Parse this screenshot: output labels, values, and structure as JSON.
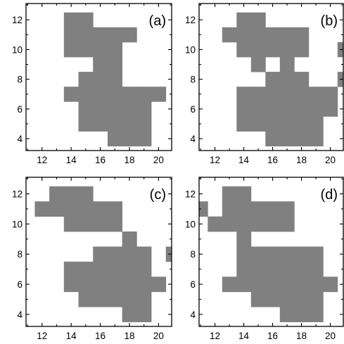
{
  "figure": {
    "colors": {
      "cell": "#808080",
      "frame": "#000000",
      "background": "#ffffff"
    }
  },
  "chart_data": [
    {
      "type": "heatmap",
      "panel_label": "(a)",
      "xlim": [
        10.9,
        20.9
      ],
      "ylim": [
        3.2,
        13.1
      ],
      "x_ticks": [
        12,
        14,
        16,
        18,
        20
      ],
      "y_ticks": [
        4,
        6,
        8,
        10,
        12
      ],
      "grid": false,
      "cells": [
        [
          14,
          12
        ],
        [
          15,
          12
        ],
        [
          14,
          11
        ],
        [
          15,
          11
        ],
        [
          16,
          11
        ],
        [
          17,
          11
        ],
        [
          18,
          11
        ],
        [
          14,
          10
        ],
        [
          15,
          10
        ],
        [
          16,
          10
        ],
        [
          17,
          10
        ],
        [
          16,
          9
        ],
        [
          17,
          9
        ],
        [
          15,
          8
        ],
        [
          16,
          8
        ],
        [
          17,
          8
        ],
        [
          14,
          7
        ],
        [
          15,
          7
        ],
        [
          16,
          7
        ],
        [
          17,
          7
        ],
        [
          18,
          7
        ],
        [
          19,
          7
        ],
        [
          20,
          7
        ],
        [
          15,
          6
        ],
        [
          16,
          6
        ],
        [
          17,
          6
        ],
        [
          18,
          6
        ],
        [
          19,
          6
        ],
        [
          15,
          5
        ],
        [
          16,
          5
        ],
        [
          17,
          5
        ],
        [
          18,
          5
        ],
        [
          19,
          5
        ],
        [
          17,
          4
        ],
        [
          18,
          4
        ],
        [
          19,
          4
        ]
      ]
    },
    {
      "type": "heatmap",
      "panel_label": "(b)",
      "xlim": [
        10.9,
        20.9
      ],
      "ylim": [
        3.2,
        13.1
      ],
      "x_ticks": [
        12,
        14,
        16,
        18,
        20
      ],
      "y_ticks": [
        4,
        6,
        8,
        10,
        12
      ],
      "grid": false,
      "cells": [
        [
          14,
          12
        ],
        [
          15,
          12
        ],
        [
          13,
          11
        ],
        [
          14,
          11
        ],
        [
          15,
          11
        ],
        [
          16,
          11
        ],
        [
          17,
          11
        ],
        [
          18,
          11
        ],
        [
          14,
          10
        ],
        [
          15,
          10
        ],
        [
          16,
          10
        ],
        [
          17,
          10
        ],
        [
          18,
          10
        ],
        [
          21,
          10
        ],
        [
          15,
          9
        ],
        [
          17,
          9
        ],
        [
          16,
          8
        ],
        [
          17,
          8
        ],
        [
          18,
          8
        ],
        [
          21,
          8
        ],
        [
          14,
          7
        ],
        [
          15,
          7
        ],
        [
          16,
          7
        ],
        [
          17,
          7
        ],
        [
          18,
          7
        ],
        [
          19,
          7
        ],
        [
          20,
          7
        ],
        [
          14,
          6
        ],
        [
          15,
          6
        ],
        [
          16,
          6
        ],
        [
          17,
          6
        ],
        [
          18,
          6
        ],
        [
          19,
          6
        ],
        [
          20,
          6
        ],
        [
          14,
          5
        ],
        [
          15,
          5
        ],
        [
          16,
          5
        ],
        [
          17,
          5
        ],
        [
          18,
          5
        ],
        [
          19,
          5
        ],
        [
          16,
          4
        ],
        [
          17,
          4
        ],
        [
          18,
          4
        ],
        [
          19,
          4
        ]
      ]
    },
    {
      "type": "heatmap",
      "panel_label": "(c)",
      "xlim": [
        10.9,
        20.9
      ],
      "ylim": [
        3.2,
        13.1
      ],
      "x_ticks": [
        12,
        14,
        16,
        18,
        20
      ],
      "y_ticks": [
        4,
        6,
        8,
        10,
        12
      ],
      "grid": false,
      "cells": [
        [
          13,
          12
        ],
        [
          14,
          12
        ],
        [
          15,
          12
        ],
        [
          12,
          11
        ],
        [
          13,
          11
        ],
        [
          14,
          11
        ],
        [
          15,
          11
        ],
        [
          16,
          11
        ],
        [
          17,
          11
        ],
        [
          14,
          10
        ],
        [
          15,
          10
        ],
        [
          16,
          10
        ],
        [
          17,
          10
        ],
        [
          18,
          9
        ],
        [
          16,
          8
        ],
        [
          17,
          8
        ],
        [
          18,
          8
        ],
        [
          19,
          8
        ],
        [
          21,
          8
        ],
        [
          14,
          7
        ],
        [
          15,
          7
        ],
        [
          16,
          7
        ],
        [
          17,
          7
        ],
        [
          18,
          7
        ],
        [
          19,
          7
        ],
        [
          14,
          6
        ],
        [
          15,
          6
        ],
        [
          16,
          6
        ],
        [
          17,
          6
        ],
        [
          18,
          6
        ],
        [
          19,
          6
        ],
        [
          20,
          6
        ],
        [
          15,
          5
        ],
        [
          16,
          5
        ],
        [
          17,
          5
        ],
        [
          18,
          5
        ],
        [
          19,
          5
        ],
        [
          18,
          4
        ],
        [
          19,
          4
        ]
      ]
    },
    {
      "type": "heatmap",
      "panel_label": "(d)",
      "xlim": [
        10.9,
        20.9
      ],
      "ylim": [
        3.2,
        13.1
      ],
      "x_ticks": [
        12,
        14,
        16,
        18,
        20
      ],
      "y_ticks": [
        4,
        6,
        8,
        10,
        12
      ],
      "grid": false,
      "cells": [
        [
          13,
          12
        ],
        [
          14,
          12
        ],
        [
          11,
          11
        ],
        [
          13,
          11
        ],
        [
          14,
          11
        ],
        [
          15,
          11
        ],
        [
          16,
          11
        ],
        [
          17,
          11
        ],
        [
          12,
          10
        ],
        [
          13,
          10
        ],
        [
          14,
          10
        ],
        [
          15,
          10
        ],
        [
          16,
          10
        ],
        [
          17,
          10
        ],
        [
          14,
          9
        ],
        [
          14,
          8
        ],
        [
          15,
          8
        ],
        [
          16,
          8
        ],
        [
          17,
          8
        ],
        [
          18,
          8
        ],
        [
          19,
          8
        ],
        [
          14,
          7
        ],
        [
          15,
          7
        ],
        [
          16,
          7
        ],
        [
          17,
          7
        ],
        [
          18,
          7
        ],
        [
          19,
          7
        ],
        [
          13,
          6
        ],
        [
          14,
          6
        ],
        [
          15,
          6
        ],
        [
          16,
          6
        ],
        [
          17,
          6
        ],
        [
          18,
          6
        ],
        [
          19,
          6
        ],
        [
          20,
          6
        ],
        [
          15,
          5
        ],
        [
          16,
          5
        ],
        [
          17,
          5
        ],
        [
          18,
          5
        ],
        [
          19,
          5
        ],
        [
          17,
          4
        ],
        [
          18,
          4
        ],
        [
          19,
          4
        ]
      ]
    }
  ]
}
